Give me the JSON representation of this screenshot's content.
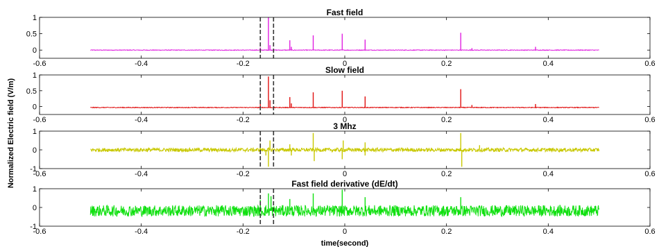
{
  "figure": {
    "ylabel": "Normalized Electric field (V/m)",
    "xlabel": "time(second)"
  },
  "chart_data": [
    {
      "type": "line",
      "title": "Fast field",
      "color": "#e020e0",
      "xlim": [
        -0.6,
        0.6
      ],
      "ylim": [
        -0.25,
        1.0
      ],
      "xticks": [
        "-0.6",
        "-0.4",
        "-0.2",
        "0",
        "0.2",
        "0.4",
        "0.6"
      ],
      "yticks": [
        "0",
        "0.5",
        "1"
      ],
      "baseline": 0.0,
      "noise": 0.01,
      "x_range": [
        -0.5,
        0.5
      ],
      "spikes": [
        {
          "x": -0.166,
          "y": 0.08
        },
        {
          "x": -0.15,
          "y": 1.0
        },
        {
          "x": -0.147,
          "y": 0.15
        },
        {
          "x": -0.108,
          "y": 0.3
        },
        {
          "x": -0.105,
          "y": 0.1
        },
        {
          "x": -0.062,
          "y": 0.45
        },
        {
          "x": -0.005,
          "y": 0.5
        },
        {
          "x": 0.04,
          "y": 0.32
        },
        {
          "x": 0.228,
          "y": 0.53
        },
        {
          "x": 0.25,
          "y": 0.06
        },
        {
          "x": 0.375,
          "y": 0.1
        }
      ]
    },
    {
      "type": "line",
      "title": "Slow field",
      "color": "#e01010",
      "xlim": [
        -0.6,
        0.6
      ],
      "ylim": [
        -0.25,
        1.0
      ],
      "xticks": [
        "-0.6",
        "-0.4",
        "-0.2",
        "0",
        "0.2",
        "0.4",
        "0.6"
      ],
      "yticks": [
        "0",
        "0.5",
        "1"
      ],
      "baseline": -0.03,
      "noise": 0.012,
      "x_range": [
        -0.5,
        0.5
      ],
      "spikes": [
        {
          "x": -0.166,
          "y": 0.1
        },
        {
          "x": -0.15,
          "y": 0.95
        },
        {
          "x": -0.147,
          "y": 0.2
        },
        {
          "x": -0.108,
          "y": 0.3
        },
        {
          "x": -0.105,
          "y": 0.1
        },
        {
          "x": -0.062,
          "y": 0.45
        },
        {
          "x": -0.005,
          "y": 0.5
        },
        {
          "x": 0.04,
          "y": 0.32
        },
        {
          "x": 0.228,
          "y": 0.55
        },
        {
          "x": 0.25,
          "y": 0.05
        },
        {
          "x": 0.375,
          "y": 0.08
        }
      ]
    },
    {
      "type": "line",
      "title": "3 Mhz",
      "color": "#c8c800",
      "xlim": [
        -0.6,
        0.6
      ],
      "ylim": [
        -1.0,
        1.0
      ],
      "xticks": [
        "-0.6",
        "-0.4",
        "-0.2",
        "0",
        "0.2",
        "0.4",
        "0.6"
      ],
      "yticks": [
        "-1",
        "0",
        "1"
      ],
      "baseline": 0.0,
      "noise": 0.1,
      "x_range": [
        -0.5,
        0.5
      ],
      "spikes": [
        {
          "x": -0.166,
          "y": 0.35
        },
        {
          "x": -0.155,
          "y": -0.3
        },
        {
          "x": -0.15,
          "y": -0.9
        },
        {
          "x": -0.147,
          "y": 0.5
        },
        {
          "x": -0.108,
          "y": 0.3
        },
        {
          "x": -0.105,
          "y": -0.3
        },
        {
          "x": -0.062,
          "y": 0.9
        },
        {
          "x": -0.06,
          "y": -0.6
        },
        {
          "x": -0.005,
          "y": -0.5
        },
        {
          "x": -0.003,
          "y": 0.5
        },
        {
          "x": 0.04,
          "y": 0.4
        },
        {
          "x": 0.04,
          "y": -0.3
        },
        {
          "x": 0.228,
          "y": 0.9
        },
        {
          "x": 0.23,
          "y": -0.9
        },
        {
          "x": 0.265,
          "y": 0.25
        }
      ]
    },
    {
      "type": "line",
      "title": "Fast field derivative (dE/dt)",
      "color": "#10e010",
      "xlim": [
        -0.6,
        0.6
      ],
      "ylim": [
        -1.0,
        1.0
      ],
      "xticks": [
        "-0.6",
        "-0.4",
        "-0.2",
        "0",
        "0.2",
        "0.4",
        "0.6"
      ],
      "yticks": [
        "-1",
        "0",
        "1"
      ],
      "baseline": -0.18,
      "noise": 0.3,
      "x_range": [
        -0.5,
        0.5
      ],
      "spikes": [
        {
          "x": -0.166,
          "y": 0.4
        },
        {
          "x": -0.15,
          "y": 0.75
        },
        {
          "x": -0.145,
          "y": 0.6
        },
        {
          "x": -0.108,
          "y": 0.45
        },
        {
          "x": -0.062,
          "y": 0.75
        },
        {
          "x": -0.005,
          "y": 0.95
        },
        {
          "x": 0.04,
          "y": 0.55
        },
        {
          "x": 0.228,
          "y": 0.55
        }
      ]
    }
  ],
  "markers": {
    "dashed_lines_x": [
      -0.166,
      -0.14
    ],
    "color": "#333333"
  }
}
